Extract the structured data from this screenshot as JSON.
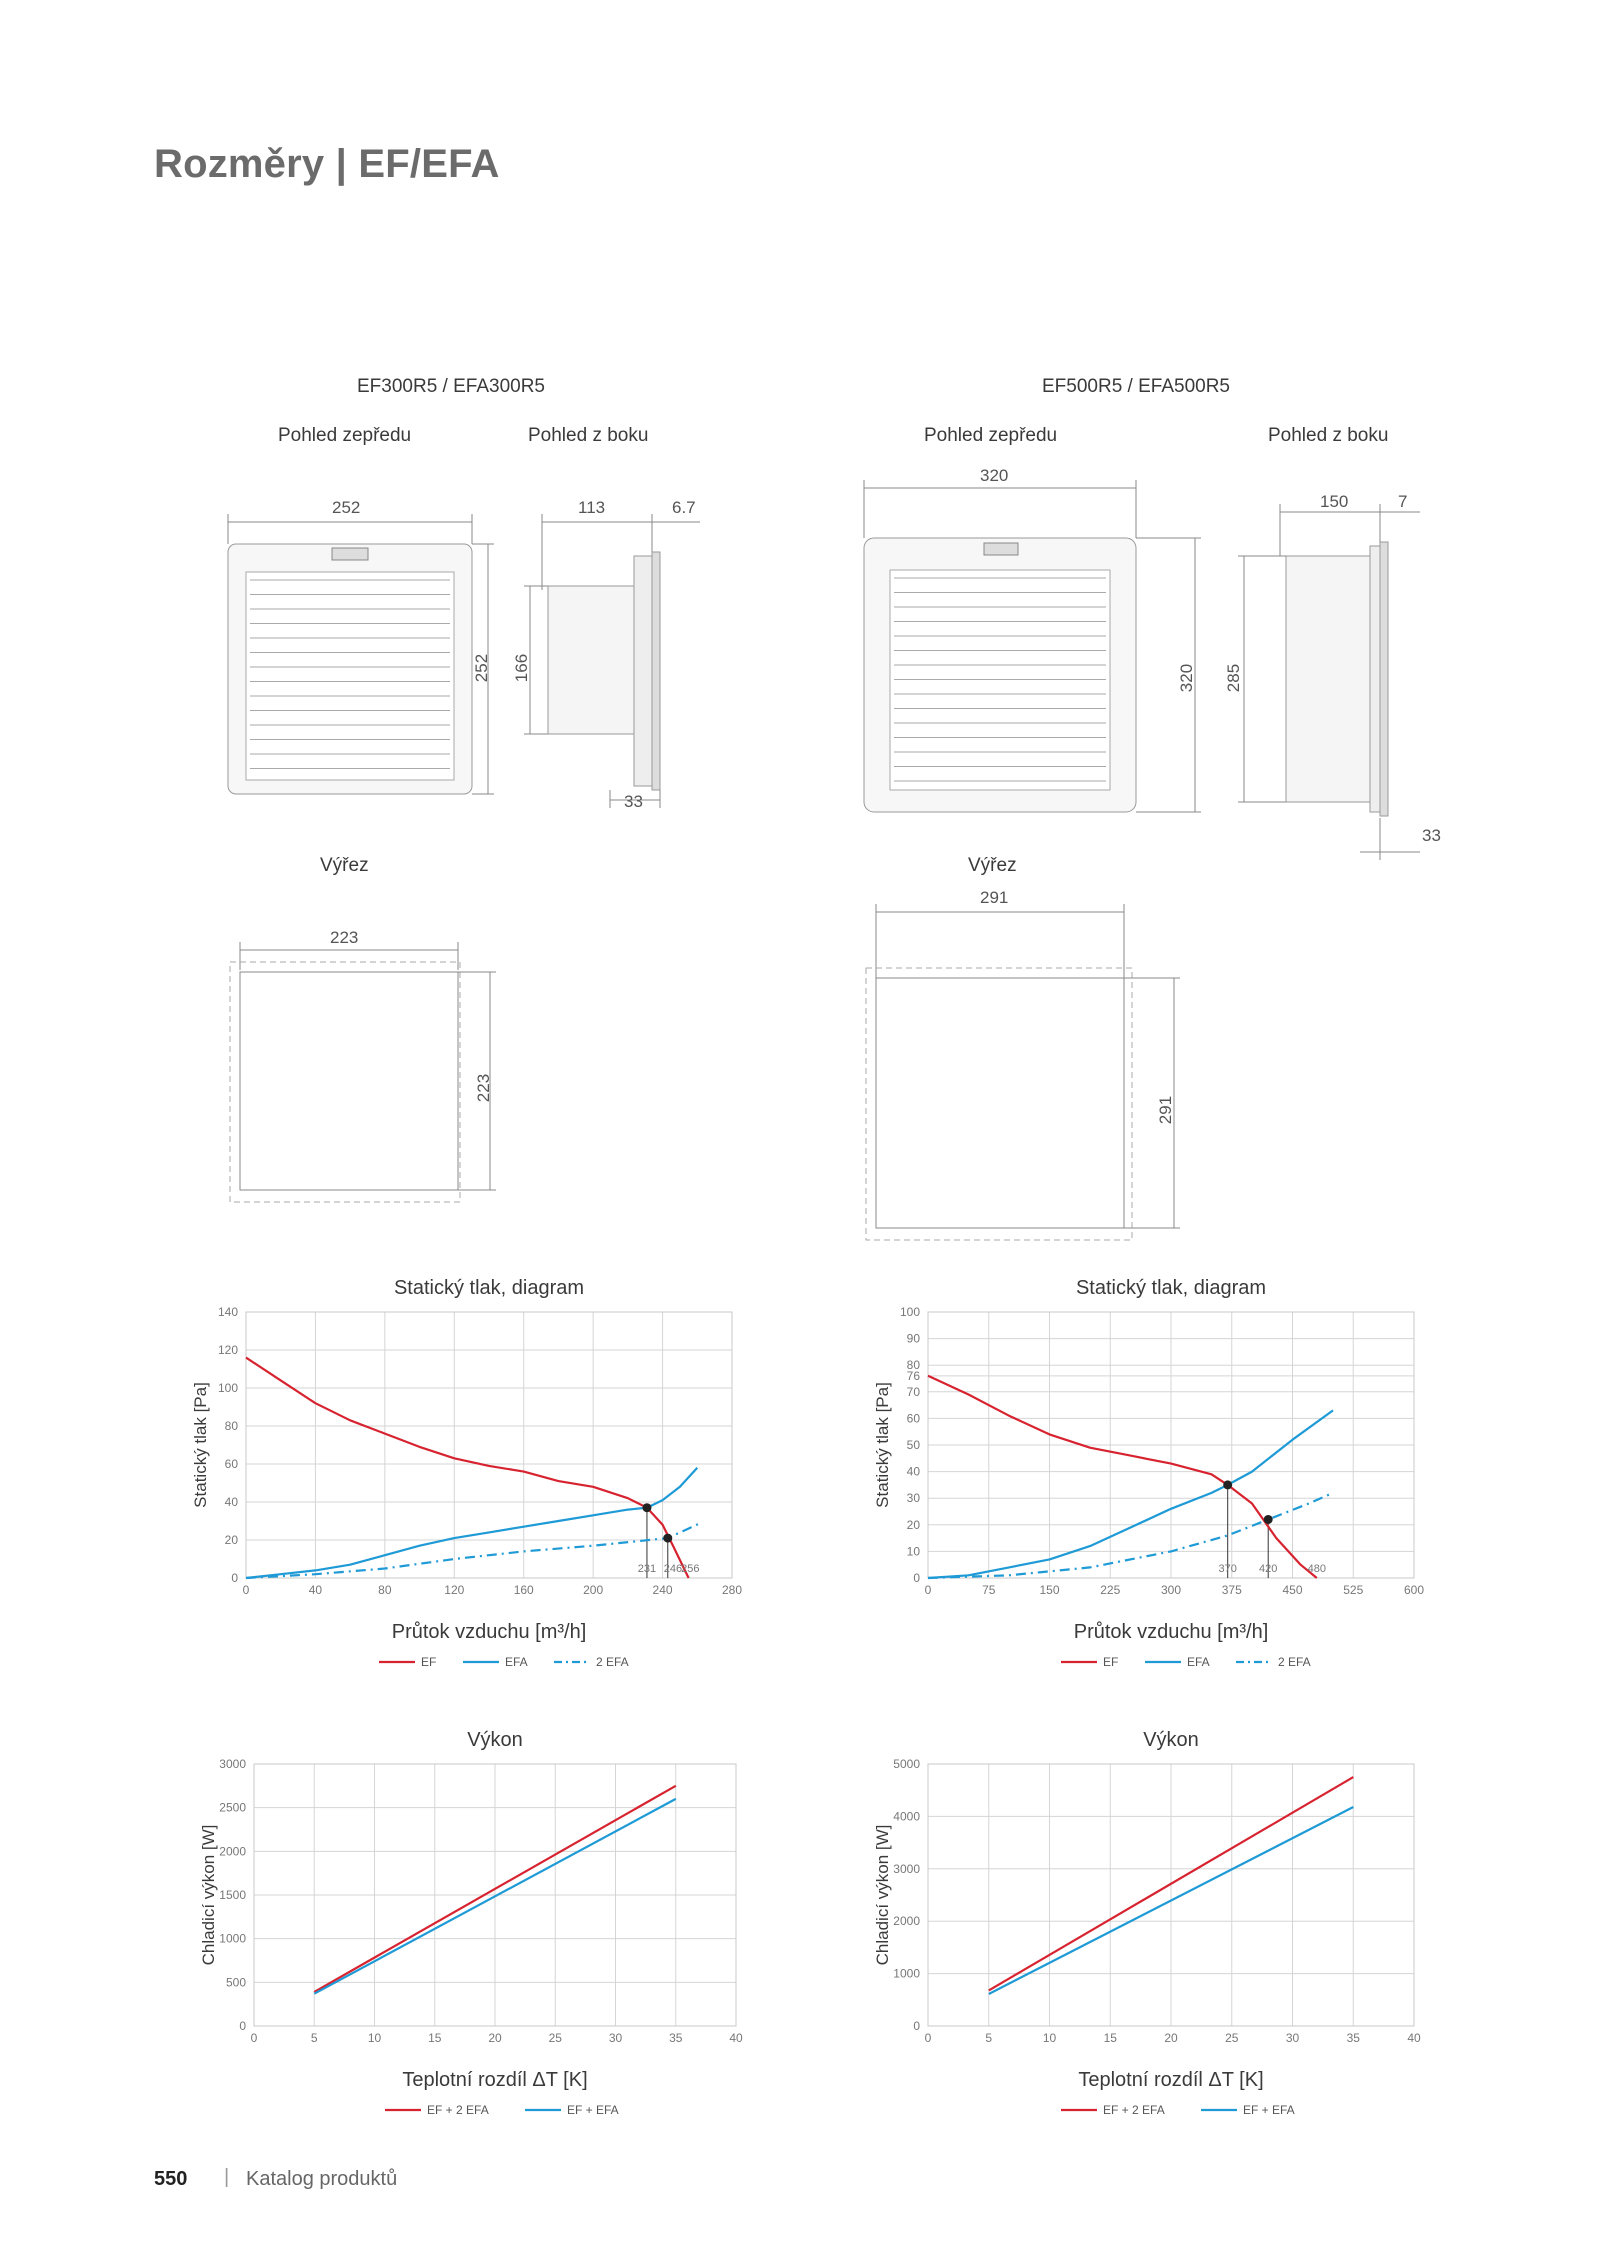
{
  "page": {
    "title": "Rozměry | EF/EFA",
    "page_number": "550",
    "separator": "|",
    "footer_text": "Katalog produktů"
  },
  "models": [
    {
      "name": "EF300R5 / EFA300R5",
      "front_label": "Pohled zepředu",
      "side_label": "Pohled z boku",
      "cutout_label": "Výřez",
      "front_width": "252",
      "front_height": "252",
      "side_depth": "113",
      "side_flange": "6.7",
      "side_height": "166",
      "side_bottom": "33",
      "cutout_width": "223",
      "cutout_height": "223"
    },
    {
      "name": "EF500R5 / EFA500R5",
      "front_label": "Pohled zepředu",
      "side_label": "Pohled z boku",
      "cutout_label": "Výřez",
      "front_width": "320",
      "front_height": "320",
      "side_depth": "150",
      "side_flange": "7",
      "side_height": "285",
      "side_bottom": "33",
      "cutout_width": "291",
      "cutout_height": "291"
    }
  ],
  "colors": {
    "ef": "#d7232f",
    "efa": "#1e9ad6",
    "grid": "#d5d5d5",
    "draw": "#888888"
  },
  "chart_data": [
    {
      "type": "line",
      "title": "Statický tlak, diagram",
      "xlabel": "Průtok vzduchu [m³/h]",
      "ylabel": "Statický tlak [Pa]",
      "xlim": [
        0,
        280
      ],
      "ylim": [
        0,
        140
      ],
      "xticks": [
        "0",
        "40",
        "80",
        "120",
        "160",
        "200",
        "240",
        "280"
      ],
      "yticks": [
        "0",
        "20",
        "40",
        "60",
        "80",
        "100",
        "120",
        "140"
      ],
      "xtick_values": [
        0,
        40,
        80,
        120,
        160,
        200,
        240,
        280
      ],
      "ytick_values": [
        0,
        20,
        40,
        60,
        80,
        100,
        120,
        140
      ],
      "annotations": [
        {
          "text": "231",
          "x": 231
        },
        {
          "text": "246",
          "x": 246
        },
        {
          "text": "256",
          "x": 256
        }
      ],
      "intersections": [
        {
          "x": 231,
          "y": 37
        },
        {
          "x": 243,
          "y": 21
        }
      ],
      "series": [
        {
          "name": "EF",
          "style": "solid",
          "color": "#d7232f",
          "x": [
            0,
            20,
            40,
            60,
            80,
            100,
            120,
            140,
            160,
            180,
            200,
            220,
            231,
            240,
            246,
            255
          ],
          "y": [
            116,
            104,
            92,
            83,
            76,
            69,
            63,
            59,
            56,
            51,
            48,
            42,
            37,
            28,
            17,
            0
          ]
        },
        {
          "name": "EFA",
          "style": "solid",
          "color": "#1e9ad6",
          "x": [
            0,
            20,
            40,
            60,
            80,
            100,
            120,
            140,
            160,
            180,
            200,
            220,
            231,
            240,
            250,
            260
          ],
          "y": [
            0,
            2,
            4,
            7,
            12,
            17,
            21,
            24,
            27,
            30,
            33,
            36,
            37,
            41,
            48,
            58
          ]
        },
        {
          "name": "2 EFA",
          "style": "dashdot",
          "color": "#1e9ad6",
          "x": [
            0,
            40,
            80,
            120,
            160,
            200,
            243,
            262
          ],
          "y": [
            0,
            2,
            5,
            10,
            14,
            17,
            21,
            29
          ]
        }
      ]
    },
    {
      "type": "line",
      "title": "Statický tlak, diagram",
      "xlabel": "Průtok vzduchu [m³/h]",
      "ylabel": "Statický tlak [Pa]",
      "xlim": [
        0,
        600
      ],
      "ylim": [
        0,
        100
      ],
      "xticks": [
        "0",
        "75",
        "150",
        "225",
        "300",
        "375",
        "450",
        "525",
        "600"
      ],
      "yticks": [
        "0",
        "10",
        "20",
        "30",
        "40",
        "50",
        "60",
        "70",
        "76",
        "80",
        "90",
        "100"
      ],
      "xtick_values": [
        0,
        75,
        150,
        225,
        300,
        375,
        450,
        525,
        600
      ],
      "ytick_values": [
        0,
        10,
        20,
        30,
        40,
        50,
        60,
        70,
        76,
        80,
        90,
        100
      ],
      "annotations": [
        {
          "text": "370",
          "x": 370
        },
        {
          "text": "420",
          "x": 420
        },
        {
          "text": "480",
          "x": 480
        }
      ],
      "intersections": [
        {
          "x": 370,
          "y": 35
        },
        {
          "x": 420,
          "y": 22
        }
      ],
      "series": [
        {
          "name": "EF",
          "style": "solid",
          "color": "#d7232f",
          "x": [
            0,
            50,
            100,
            150,
            200,
            250,
            300,
            350,
            370,
            400,
            430,
            460,
            480
          ],
          "y": [
            76,
            69,
            61,
            54,
            49,
            46,
            43,
            39,
            35,
            28,
            15,
            5,
            0
          ]
        },
        {
          "name": "EFA",
          "style": "solid",
          "color": "#1e9ad6",
          "x": [
            0,
            50,
            100,
            150,
            200,
            250,
            300,
            350,
            370,
            400,
            450,
            500
          ],
          "y": [
            0,
            1,
            4,
            7,
            12,
            19,
            26,
            32,
            35,
            40,
            52,
            63
          ]
        },
        {
          "name": "2 EFA",
          "style": "dashdot",
          "color": "#1e9ad6",
          "x": [
            0,
            100,
            200,
            300,
            370,
            420,
            470,
            500
          ],
          "y": [
            0,
            1,
            4,
            10,
            16,
            22,
            28,
            32
          ]
        }
      ]
    },
    {
      "type": "line",
      "title": "Výkon",
      "xlabel": "Teplotní rozdíl ΔT [K]",
      "ylabel": "Chladicí výkon [W]",
      "xlim": [
        0,
        40
      ],
      "ylim": [
        0,
        3000
      ],
      "xticks": [
        "0",
        "5",
        "10",
        "15",
        "20",
        "25",
        "30",
        "35",
        "40"
      ],
      "yticks": [
        "0",
        "500",
        "1000",
        "1500",
        "2000",
        "2500",
        "3000"
      ],
      "xtick_values": [
        0,
        5,
        10,
        15,
        20,
        25,
        30,
        35,
        40
      ],
      "ytick_values": [
        0,
        500,
        1000,
        1500,
        2000,
        2500,
        3000
      ],
      "series": [
        {
          "name": "EF + 2 EFA",
          "style": "solid",
          "color": "#d7232f",
          "x": [
            5,
            35
          ],
          "y": [
            390,
            2750
          ]
        },
        {
          "name": "EF + EFA",
          "style": "solid",
          "color": "#1e9ad6",
          "x": [
            5,
            35
          ],
          "y": [
            370,
            2600
          ]
        }
      ]
    },
    {
      "type": "line",
      "title": "Výkon",
      "xlabel": "Teplotní rozdíl ΔT [K]",
      "ylabel": "Chladicí výkon [W]",
      "xlim": [
        0,
        40
      ],
      "ylim": [
        0,
        5000
      ],
      "xticks": [
        "0",
        "5",
        "10",
        "15",
        "20",
        "25",
        "30",
        "35",
        "40"
      ],
      "yticks": [
        "0",
        "1000",
        "2000",
        "3000",
        "4000",
        "5000"
      ],
      "xtick_values": [
        0,
        5,
        10,
        15,
        20,
        25,
        30,
        35,
        40
      ],
      "ytick_values": [
        0,
        1000,
        2000,
        3000,
        4000,
        5000
      ],
      "series": [
        {
          "name": "EF + 2 EFA",
          "style": "solid",
          "color": "#d7232f",
          "x": [
            5,
            35
          ],
          "y": [
            680,
            4750
          ]
        },
        {
          "name": "EF + EFA",
          "style": "solid",
          "color": "#1e9ad6",
          "x": [
            5,
            35
          ],
          "y": [
            610,
            4180
          ]
        }
      ]
    }
  ]
}
